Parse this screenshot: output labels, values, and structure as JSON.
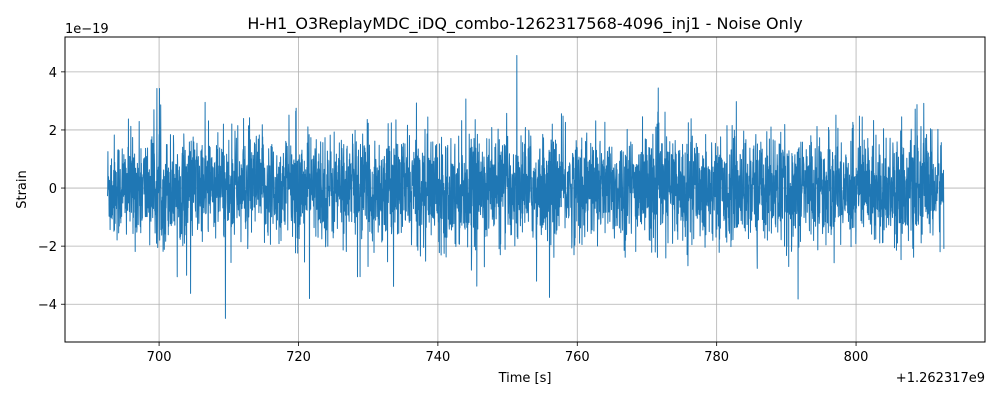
{
  "chart_data": {
    "type": "line",
    "title": "H-H1_O3ReplayMDC_iDQ_combo-1262317568-4096_inj1 - Noise Only",
    "xlabel": "Time [s]",
    "ylabel": "Strain",
    "x_offset_label": "+1.262317e9",
    "y_scale_label": "1e−19",
    "xlim": [
      686.5,
      818.5
    ],
    "ylim": [
      -5.3,
      5.2
    ],
    "x_ticks": [
      700,
      720,
      740,
      760,
      780,
      800
    ],
    "x_tick_labels": [
      "700",
      "720",
      "740",
      "760",
      "780",
      "800"
    ],
    "y_ticks": [
      -4,
      -2,
      0,
      2,
      4
    ],
    "y_tick_labels": [
      "−4",
      "−2",
      "0",
      "2",
      "4"
    ],
    "grid": true,
    "series": [
      {
        "color": "#1f77b4",
        "x_start": 692.6,
        "x_end": 812.6,
        "y_min": -4.9,
        "y_max": 4.6,
        "y_std": 0.9
      }
    ]
  }
}
